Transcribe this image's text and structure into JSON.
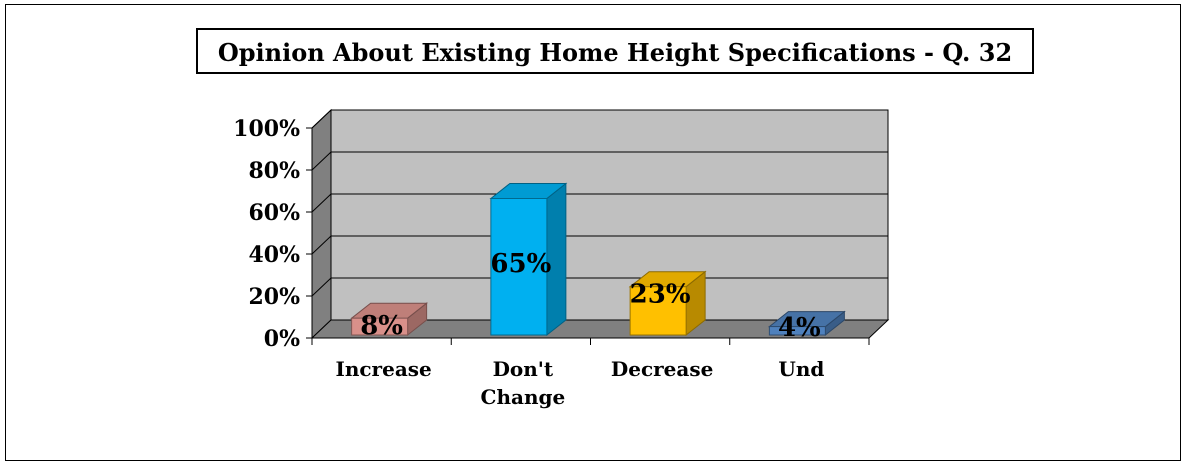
{
  "chart_data": {
    "type": "bar",
    "title": "Opinion About Existing Home Height Specifications - Q. 32",
    "categories": [
      [
        "Increase"
      ],
      [
        "Don't",
        "Change"
      ],
      [
        "Decrease"
      ],
      [
        "Und"
      ]
    ],
    "values": [
      8,
      65,
      23,
      4
    ],
    "value_labels": [
      "8%",
      "65%",
      "23%",
      "4%"
    ],
    "colors": [
      "#d9908a",
      "#00b0f0",
      "#ffc000",
      "#4f81bd"
    ],
    "ylim": [
      0,
      100
    ],
    "yticks": [
      "0%",
      "20%",
      "40%",
      "60%",
      "80%",
      "100%"
    ],
    "grid": true,
    "legend": "none",
    "style": "3d"
  }
}
